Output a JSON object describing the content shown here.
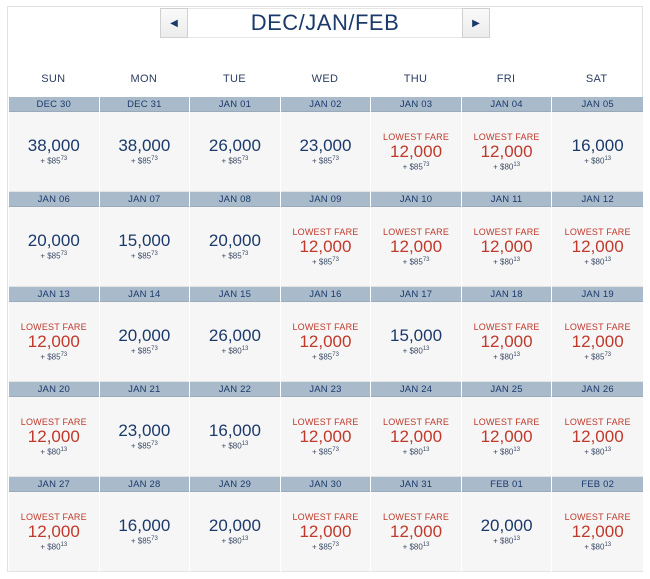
{
  "header": {
    "title": "DEC/JAN/FEB",
    "prev_icon": "◀",
    "next_icon": "▶"
  },
  "weekdays": [
    "SUN",
    "MON",
    "TUE",
    "WED",
    "THU",
    "FRI",
    "SAT"
  ],
  "lowest_label": "LOWEST FARE",
  "colors": {
    "date_bar": "#a9bacb",
    "lowest": "#c0392b",
    "text": "#1b3a6b"
  },
  "weeks": [
    [
      {
        "date": "DEC 30",
        "miles": "38,000",
        "fee_prefix": "+ $",
        "fee_dollars": "85",
        "fee_cents": "73",
        "lowest": false
      },
      {
        "date": "DEC 31",
        "miles": "38,000",
        "fee_prefix": "+ $",
        "fee_dollars": "85",
        "fee_cents": "73",
        "lowest": false
      },
      {
        "date": "JAN 01",
        "miles": "26,000",
        "fee_prefix": "+ $",
        "fee_dollars": "85",
        "fee_cents": "73",
        "lowest": false
      },
      {
        "date": "JAN 02",
        "miles": "23,000",
        "fee_prefix": "+ $",
        "fee_dollars": "85",
        "fee_cents": "73",
        "lowest": false
      },
      {
        "date": "JAN 03",
        "miles": "12,000",
        "fee_prefix": "+ $",
        "fee_dollars": "85",
        "fee_cents": "73",
        "lowest": true
      },
      {
        "date": "JAN 04",
        "miles": "12,000",
        "fee_prefix": "+ $",
        "fee_dollars": "80",
        "fee_cents": "13",
        "lowest": true
      },
      {
        "date": "JAN 05",
        "miles": "16,000",
        "fee_prefix": "+ $",
        "fee_dollars": "80",
        "fee_cents": "13",
        "lowest": false
      }
    ],
    [
      {
        "date": "JAN 06",
        "miles": "20,000",
        "fee_prefix": "+ $",
        "fee_dollars": "85",
        "fee_cents": "73",
        "lowest": false
      },
      {
        "date": "JAN 07",
        "miles": "15,000",
        "fee_prefix": "+ $",
        "fee_dollars": "85",
        "fee_cents": "73",
        "lowest": false
      },
      {
        "date": "JAN 08",
        "miles": "20,000",
        "fee_prefix": "+ $",
        "fee_dollars": "85",
        "fee_cents": "73",
        "lowest": false
      },
      {
        "date": "JAN 09",
        "miles": "12,000",
        "fee_prefix": "+ $",
        "fee_dollars": "85",
        "fee_cents": "73",
        "lowest": true
      },
      {
        "date": "JAN 10",
        "miles": "12,000",
        "fee_prefix": "+ $",
        "fee_dollars": "85",
        "fee_cents": "73",
        "lowest": true
      },
      {
        "date": "JAN 11",
        "miles": "12,000",
        "fee_prefix": "+ $",
        "fee_dollars": "80",
        "fee_cents": "13",
        "lowest": true
      },
      {
        "date": "JAN 12",
        "miles": "12,000",
        "fee_prefix": "+ $",
        "fee_dollars": "80",
        "fee_cents": "13",
        "lowest": true
      }
    ],
    [
      {
        "date": "JAN 13",
        "miles": "12,000",
        "fee_prefix": "+ $",
        "fee_dollars": "85",
        "fee_cents": "73",
        "lowest": true
      },
      {
        "date": "JAN 14",
        "miles": "20,000",
        "fee_prefix": "+ $",
        "fee_dollars": "85",
        "fee_cents": "73",
        "lowest": false
      },
      {
        "date": "JAN 15",
        "miles": "26,000",
        "fee_prefix": "+ $",
        "fee_dollars": "80",
        "fee_cents": "13",
        "lowest": false
      },
      {
        "date": "JAN 16",
        "miles": "12,000",
        "fee_prefix": "+ $",
        "fee_dollars": "85",
        "fee_cents": "73",
        "lowest": true
      },
      {
        "date": "JAN 17",
        "miles": "15,000",
        "fee_prefix": "+ $",
        "fee_dollars": "80",
        "fee_cents": "13",
        "lowest": false
      },
      {
        "date": "JAN 18",
        "miles": "12,000",
        "fee_prefix": "+ $",
        "fee_dollars": "80",
        "fee_cents": "13",
        "lowest": true
      },
      {
        "date": "JAN 19",
        "miles": "12,000",
        "fee_prefix": "+ $",
        "fee_dollars": "85",
        "fee_cents": "73",
        "lowest": true
      }
    ],
    [
      {
        "date": "JAN 20",
        "miles": "12,000",
        "fee_prefix": "+ $",
        "fee_dollars": "80",
        "fee_cents": "13",
        "lowest": true
      },
      {
        "date": "JAN 21",
        "miles": "23,000",
        "fee_prefix": "+ $",
        "fee_dollars": "85",
        "fee_cents": "73",
        "lowest": false
      },
      {
        "date": "JAN 22",
        "miles": "16,000",
        "fee_prefix": "+ $",
        "fee_dollars": "80",
        "fee_cents": "13",
        "lowest": false
      },
      {
        "date": "JAN 23",
        "miles": "12,000",
        "fee_prefix": "+ $",
        "fee_dollars": "85",
        "fee_cents": "73",
        "lowest": true
      },
      {
        "date": "JAN 24",
        "miles": "12,000",
        "fee_prefix": "+ $",
        "fee_dollars": "80",
        "fee_cents": "13",
        "lowest": true
      },
      {
        "date": "JAN 25",
        "miles": "12,000",
        "fee_prefix": "+ $",
        "fee_dollars": "80",
        "fee_cents": "13",
        "lowest": true
      },
      {
        "date": "JAN 26",
        "miles": "12,000",
        "fee_prefix": "+ $",
        "fee_dollars": "80",
        "fee_cents": "13",
        "lowest": true
      }
    ],
    [
      {
        "date": "JAN 27",
        "miles": "12,000",
        "fee_prefix": "+ $",
        "fee_dollars": "80",
        "fee_cents": "13",
        "lowest": true
      },
      {
        "date": "JAN 28",
        "miles": "16,000",
        "fee_prefix": "+ $",
        "fee_dollars": "85",
        "fee_cents": "73",
        "lowest": false
      },
      {
        "date": "JAN 29",
        "miles": "20,000",
        "fee_prefix": "+ $",
        "fee_dollars": "80",
        "fee_cents": "13",
        "lowest": false
      },
      {
        "date": "JAN 30",
        "miles": "12,000",
        "fee_prefix": "+ $",
        "fee_dollars": "85",
        "fee_cents": "73",
        "lowest": true
      },
      {
        "date": "JAN 31",
        "miles": "12,000",
        "fee_prefix": "+ $",
        "fee_dollars": "80",
        "fee_cents": "13",
        "lowest": true
      },
      {
        "date": "FEB 01",
        "miles": "20,000",
        "fee_prefix": "+ $",
        "fee_dollars": "80",
        "fee_cents": "13",
        "lowest": false
      },
      {
        "date": "FEB 02",
        "miles": "12,000",
        "fee_prefix": "+ $",
        "fee_dollars": "80",
        "fee_cents": "13",
        "lowest": true
      }
    ]
  ]
}
